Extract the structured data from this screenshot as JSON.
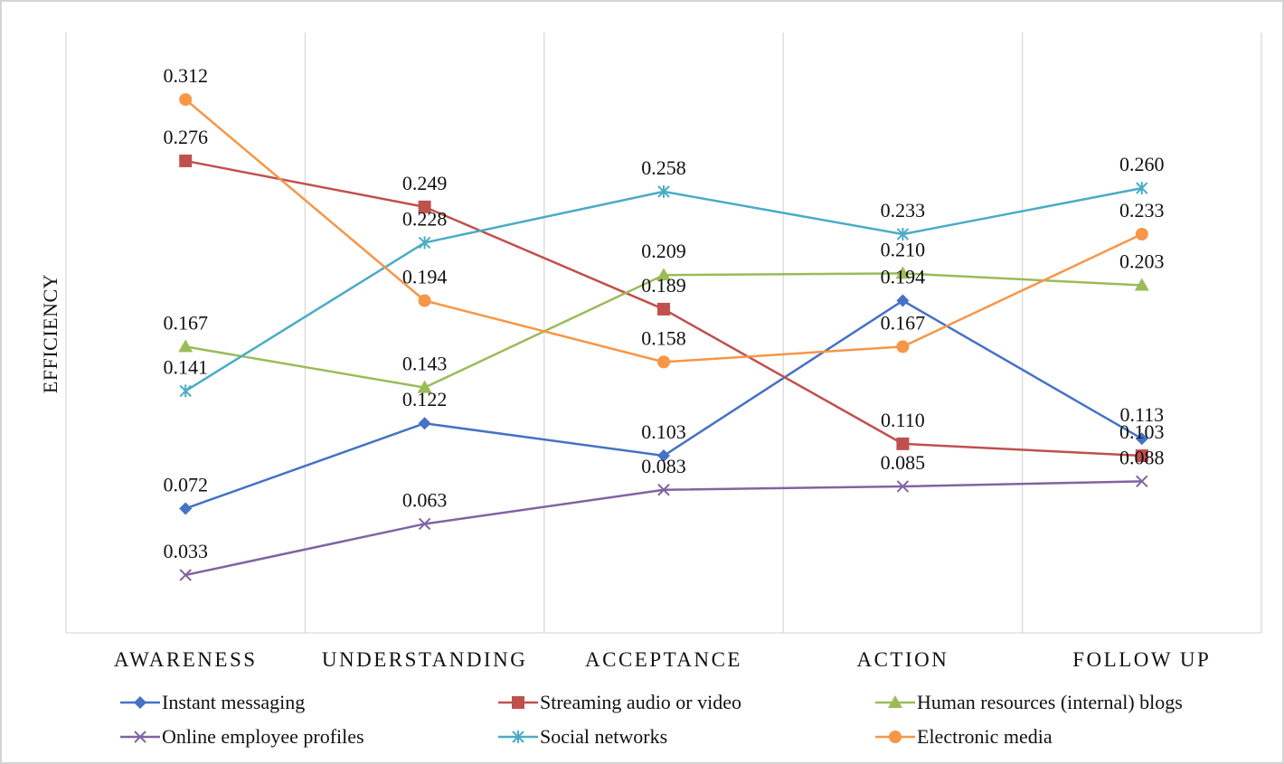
{
  "chart_data": {
    "type": "line",
    "title": "",
    "xlabel": "",
    "ylabel": "EFFICIENCY",
    "categories": [
      "AWARENESS",
      "UNDERSTANDING",
      "ACCEPTANCE",
      "ACTION",
      "FOLLOW UP"
    ],
    "ylim": [
      0.0,
      0.35
    ],
    "grid": "vertical",
    "legend_position": "bottom",
    "series": [
      {
        "name": "Instant messaging",
        "marker": "diamond",
        "color": "#4472c4",
        "values": [
          0.072,
          0.122,
          0.103,
          0.194,
          0.113
        ],
        "labels": [
          "0.072",
          "0.122",
          "0.103",
          "0.194",
          "0.113"
        ]
      },
      {
        "name": "Streaming audio or video",
        "marker": "square",
        "color": "#c0504d",
        "values": [
          0.276,
          0.249,
          0.189,
          0.11,
          0.103
        ],
        "labels": [
          "0.276",
          "0.249",
          "0.189",
          "0.110",
          "0.103"
        ]
      },
      {
        "name": "Human resources (internal) blogs",
        "marker": "triangle",
        "color": "#9bbb59",
        "values": [
          0.167,
          0.143,
          0.209,
          0.21,
          0.203
        ],
        "labels": [
          "0.167",
          "0.143",
          "0.209",
          "0.210",
          "0.203"
        ]
      },
      {
        "name": "Online employee profiles",
        "marker": "x",
        "color": "#8064a2",
        "values": [
          0.033,
          0.063,
          0.083,
          0.085,
          0.088
        ],
        "labels": [
          "0.033",
          "0.063",
          "0.083",
          "0.085",
          "0.088"
        ]
      },
      {
        "name": "Social networks",
        "marker": "star",
        "color": "#4bacc6",
        "values": [
          0.141,
          0.228,
          0.258,
          0.233,
          0.26
        ],
        "labels": [
          "0.141",
          "0.228",
          "0.258",
          "0.233",
          "0.260"
        ]
      },
      {
        "name": "Electronic media",
        "marker": "circle",
        "color": "#f79646",
        "values": [
          0.312,
          0.194,
          0.158,
          0.167,
          0.233
        ],
        "labels": [
          "0.312",
          "0.194",
          "0.158",
          "0.167",
          "0.233"
        ]
      }
    ]
  }
}
